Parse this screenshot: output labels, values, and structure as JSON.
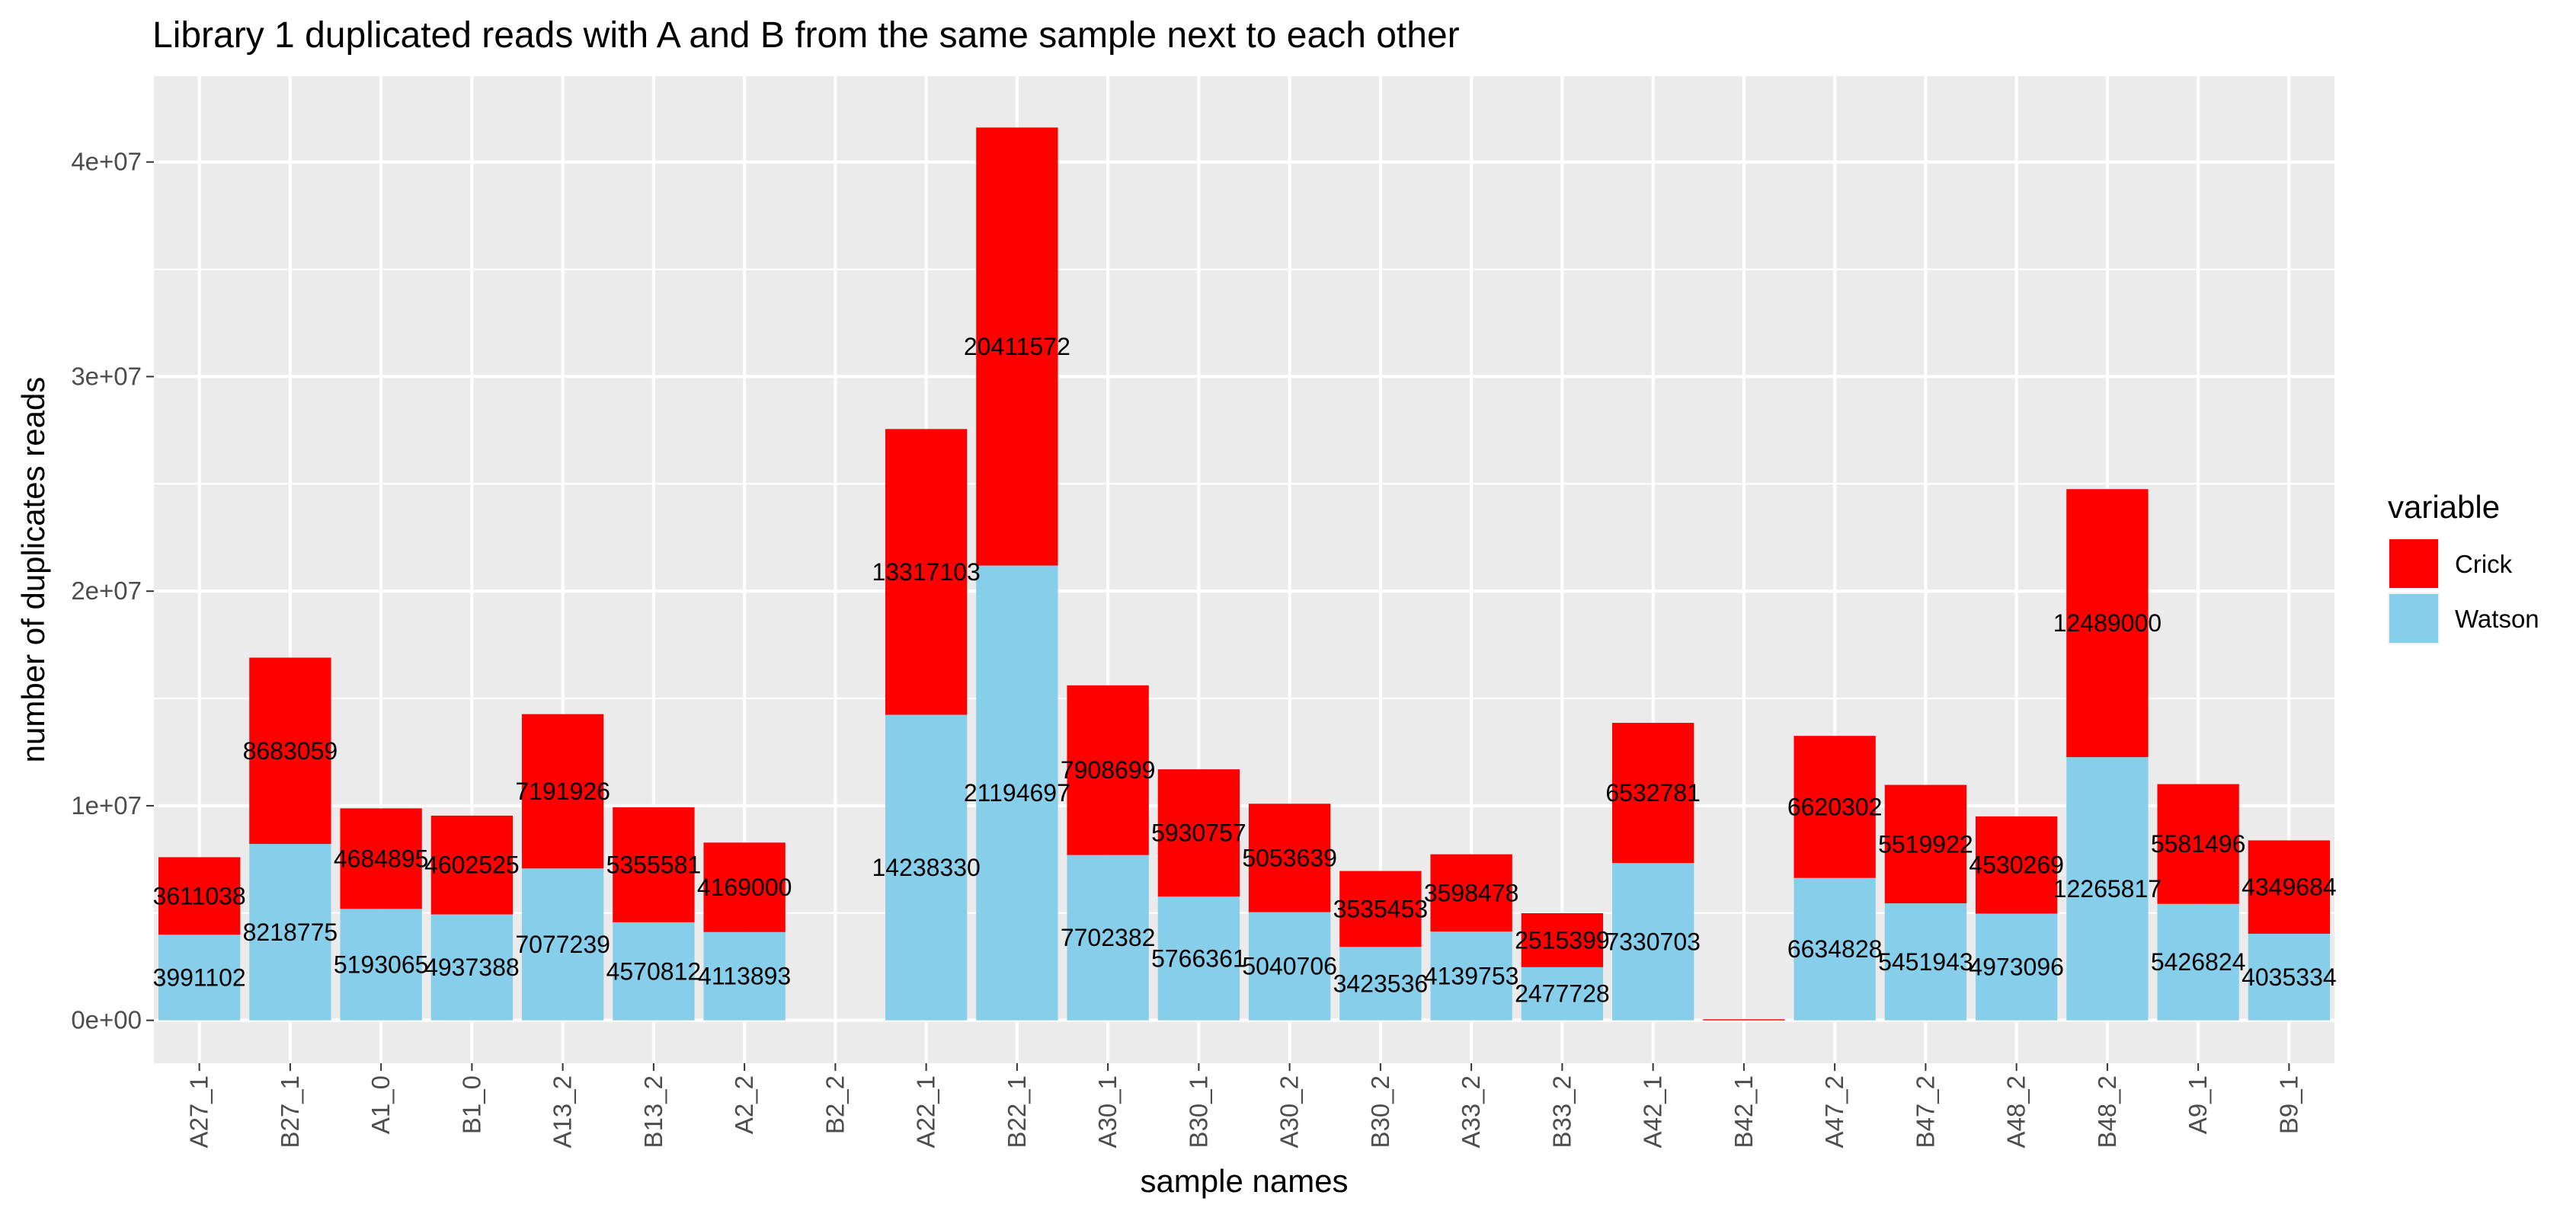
{
  "chart_data": {
    "type": "bar",
    "stacked": true,
    "title": "Library 1 duplicated reads with A and B from the same sample next to each other",
    "xlabel": "sample names",
    "ylabel": "number of duplicates reads",
    "ylim": [
      -2000000,
      44000000
    ],
    "yticks": [
      0,
      10000000,
      20000000,
      30000000,
      40000000
    ],
    "ytick_labels": [
      "0e+00",
      "1e+07",
      "2e+07",
      "3e+07",
      "4e+07"
    ],
    "grid": true,
    "legend": {
      "title": "variable",
      "position": "right"
    },
    "categories": [
      "A27_1",
      "B27_1",
      "A1_0",
      "B1_0",
      "A13_2",
      "B13_2",
      "A2_2",
      "B2_2",
      "A22_1",
      "B22_1",
      "A30_1",
      "B30_1",
      "A30_2",
      "B30_2",
      "A33_2",
      "B33_2",
      "A42_1",
      "B42_1",
      "A47_2",
      "B47_2",
      "A48_2",
      "B48_2",
      "A9_1",
      "B9_1"
    ],
    "series": [
      {
        "name": "Watson",
        "color": "#87CEEB",
        "values": [
          3991102,
          8218775,
          5193065,
          4937388,
          7077239,
          4570812,
          4113893,
          0,
          14238330,
          21194697,
          7702382,
          5766361,
          5040706,
          3423536,
          4139753,
          2477728,
          7330703,
          0,
          6634828,
          5451943,
          4973096,
          12265817,
          5426824,
          4035334
        ],
        "labels": [
          "3991102",
          "8218775",
          "5193065",
          "4937388",
          "7077239",
          "4570812",
          "4113893",
          "",
          "14238330",
          "21194697",
          "7702382",
          "5766361",
          "5040706",
          "3423536",
          "4139753",
          "2477728",
          "7330703",
          "",
          "6634828",
          "5451943",
          "4973096",
          "12265817",
          "5426824",
          "4035334"
        ]
      },
      {
        "name": "Crick",
        "color": "#FF0000",
        "values": [
          3611038,
          8683059,
          4684895,
          4602525,
          7191926,
          5355581,
          4169000,
          0,
          13317103,
          20411572,
          7908699,
          5930757,
          5053639,
          3535453,
          3598478,
          2515399,
          6532781,
          50000,
          6620302,
          5519922,
          4530269,
          12489000,
          5581496,
          4349684
        ],
        "labels": [
          "3611038",
          "8683059",
          "4684895",
          "4602525",
          "7191926",
          "5355581",
          "4169000",
          "",
          "13317103",
          "20411572",
          "7908699",
          "5930757",
          "5053639",
          "3535453",
          "3598478",
          "2515399",
          "6532781",
          "",
          "6620302",
          "5519922",
          "4530269",
          "12489000",
          "5581496",
          "4349684"
        ]
      }
    ]
  }
}
